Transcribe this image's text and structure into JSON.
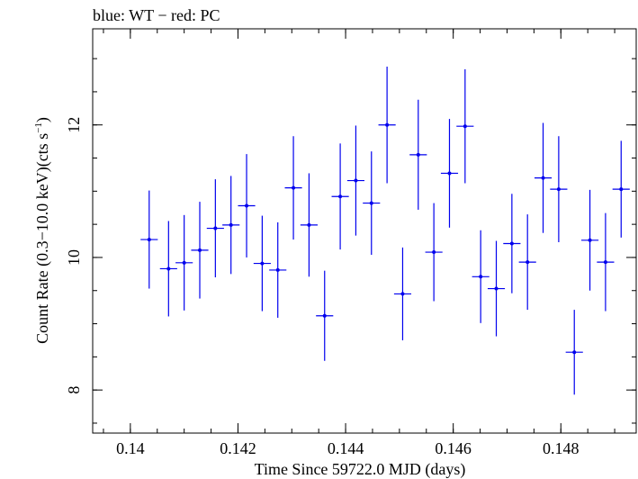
{
  "chart_data": {
    "type": "scatter",
    "title": "blue: WT − red: PC",
    "xlabel": "Time Since 59722.0 MJD (days)",
    "ylabel_main": "Count Rate (0.3−10.0 keV)(cts s",
    "ylabel_sup": "−1",
    "ylabel_end": ")",
    "xlim": [
      0.1393,
      0.1494
    ],
    "ylim": [
      7.35,
      13.45
    ],
    "x_ticks": [
      {
        "value": 0.14,
        "label": "0.14"
      },
      {
        "value": 0.142,
        "label": "0.142"
      },
      {
        "value": 0.144,
        "label": "0.144"
      },
      {
        "value": 0.146,
        "label": "0.146"
      },
      {
        "value": 0.148,
        "label": "0.148"
      }
    ],
    "y_ticks": [
      {
        "value": 8,
        "label": "8"
      },
      {
        "value": 10,
        "label": "10"
      },
      {
        "value": 12,
        "label": "12"
      }
    ],
    "x_minor_step": 0.0005,
    "y_minor_step": 0.5,
    "grid": false,
    "series": [
      {
        "color": "#0000ee",
        "x_halfwidth": 0.00016,
        "points": [
          {
            "x": 0.14035,
            "y": 10.27,
            "yerr": 0.74
          },
          {
            "x": 0.14071,
            "y": 9.83,
            "yerr": 0.72
          },
          {
            "x": 0.141,
            "y": 9.92,
            "yerr": 0.72
          },
          {
            "x": 0.14129,
            "y": 10.11,
            "yerr": 0.73
          },
          {
            "x": 0.14158,
            "y": 10.44,
            "yerr": 0.74
          },
          {
            "x": 0.14187,
            "y": 10.49,
            "yerr": 0.74
          },
          {
            "x": 0.14216,
            "y": 10.78,
            "yerr": 0.78
          },
          {
            "x": 0.14245,
            "y": 9.91,
            "yerr": 0.72
          },
          {
            "x": 0.14274,
            "y": 9.81,
            "yerr": 0.72
          },
          {
            "x": 0.14303,
            "y": 11.05,
            "yerr": 0.78
          },
          {
            "x": 0.14332,
            "y": 10.49,
            "yerr": 0.78
          },
          {
            "x": 0.14361,
            "y": 9.12,
            "yerr": 0.68
          },
          {
            "x": 0.1439,
            "y": 10.92,
            "yerr": 0.8
          },
          {
            "x": 0.14419,
            "y": 11.16,
            "yerr": 0.83
          },
          {
            "x": 0.14448,
            "y": 10.82,
            "yerr": 0.78
          },
          {
            "x": 0.14477,
            "y": 12.0,
            "yerr": 0.88
          },
          {
            "x": 0.14506,
            "y": 9.45,
            "yerr": 0.7
          },
          {
            "x": 0.14535,
            "y": 11.55,
            "yerr": 0.83
          },
          {
            "x": 0.14564,
            "y": 10.08,
            "yerr": 0.74
          },
          {
            "x": 0.14593,
            "y": 11.27,
            "yerr": 0.82
          },
          {
            "x": 0.14622,
            "y": 11.98,
            "yerr": 0.86
          },
          {
            "x": 0.14651,
            "y": 9.71,
            "yerr": 0.7
          },
          {
            "x": 0.1468,
            "y": 9.53,
            "yerr": 0.72
          },
          {
            "x": 0.14709,
            "y": 10.21,
            "yerr": 0.75
          },
          {
            "x": 0.14738,
            "y": 9.93,
            "yerr": 0.72
          },
          {
            "x": 0.14767,
            "y": 11.2,
            "yerr": 0.83
          },
          {
            "x": 0.14796,
            "y": 11.03,
            "yerr": 0.8
          },
          {
            "x": 0.14825,
            "y": 8.57,
            "yerr": 0.64
          },
          {
            "x": 0.14854,
            "y": 10.26,
            "yerr": 0.76
          },
          {
            "x": 0.14883,
            "y": 9.93,
            "yerr": 0.74
          },
          {
            "x": 0.14912,
            "y": 11.03,
            "yerr": 0.73
          }
        ]
      }
    ]
  }
}
